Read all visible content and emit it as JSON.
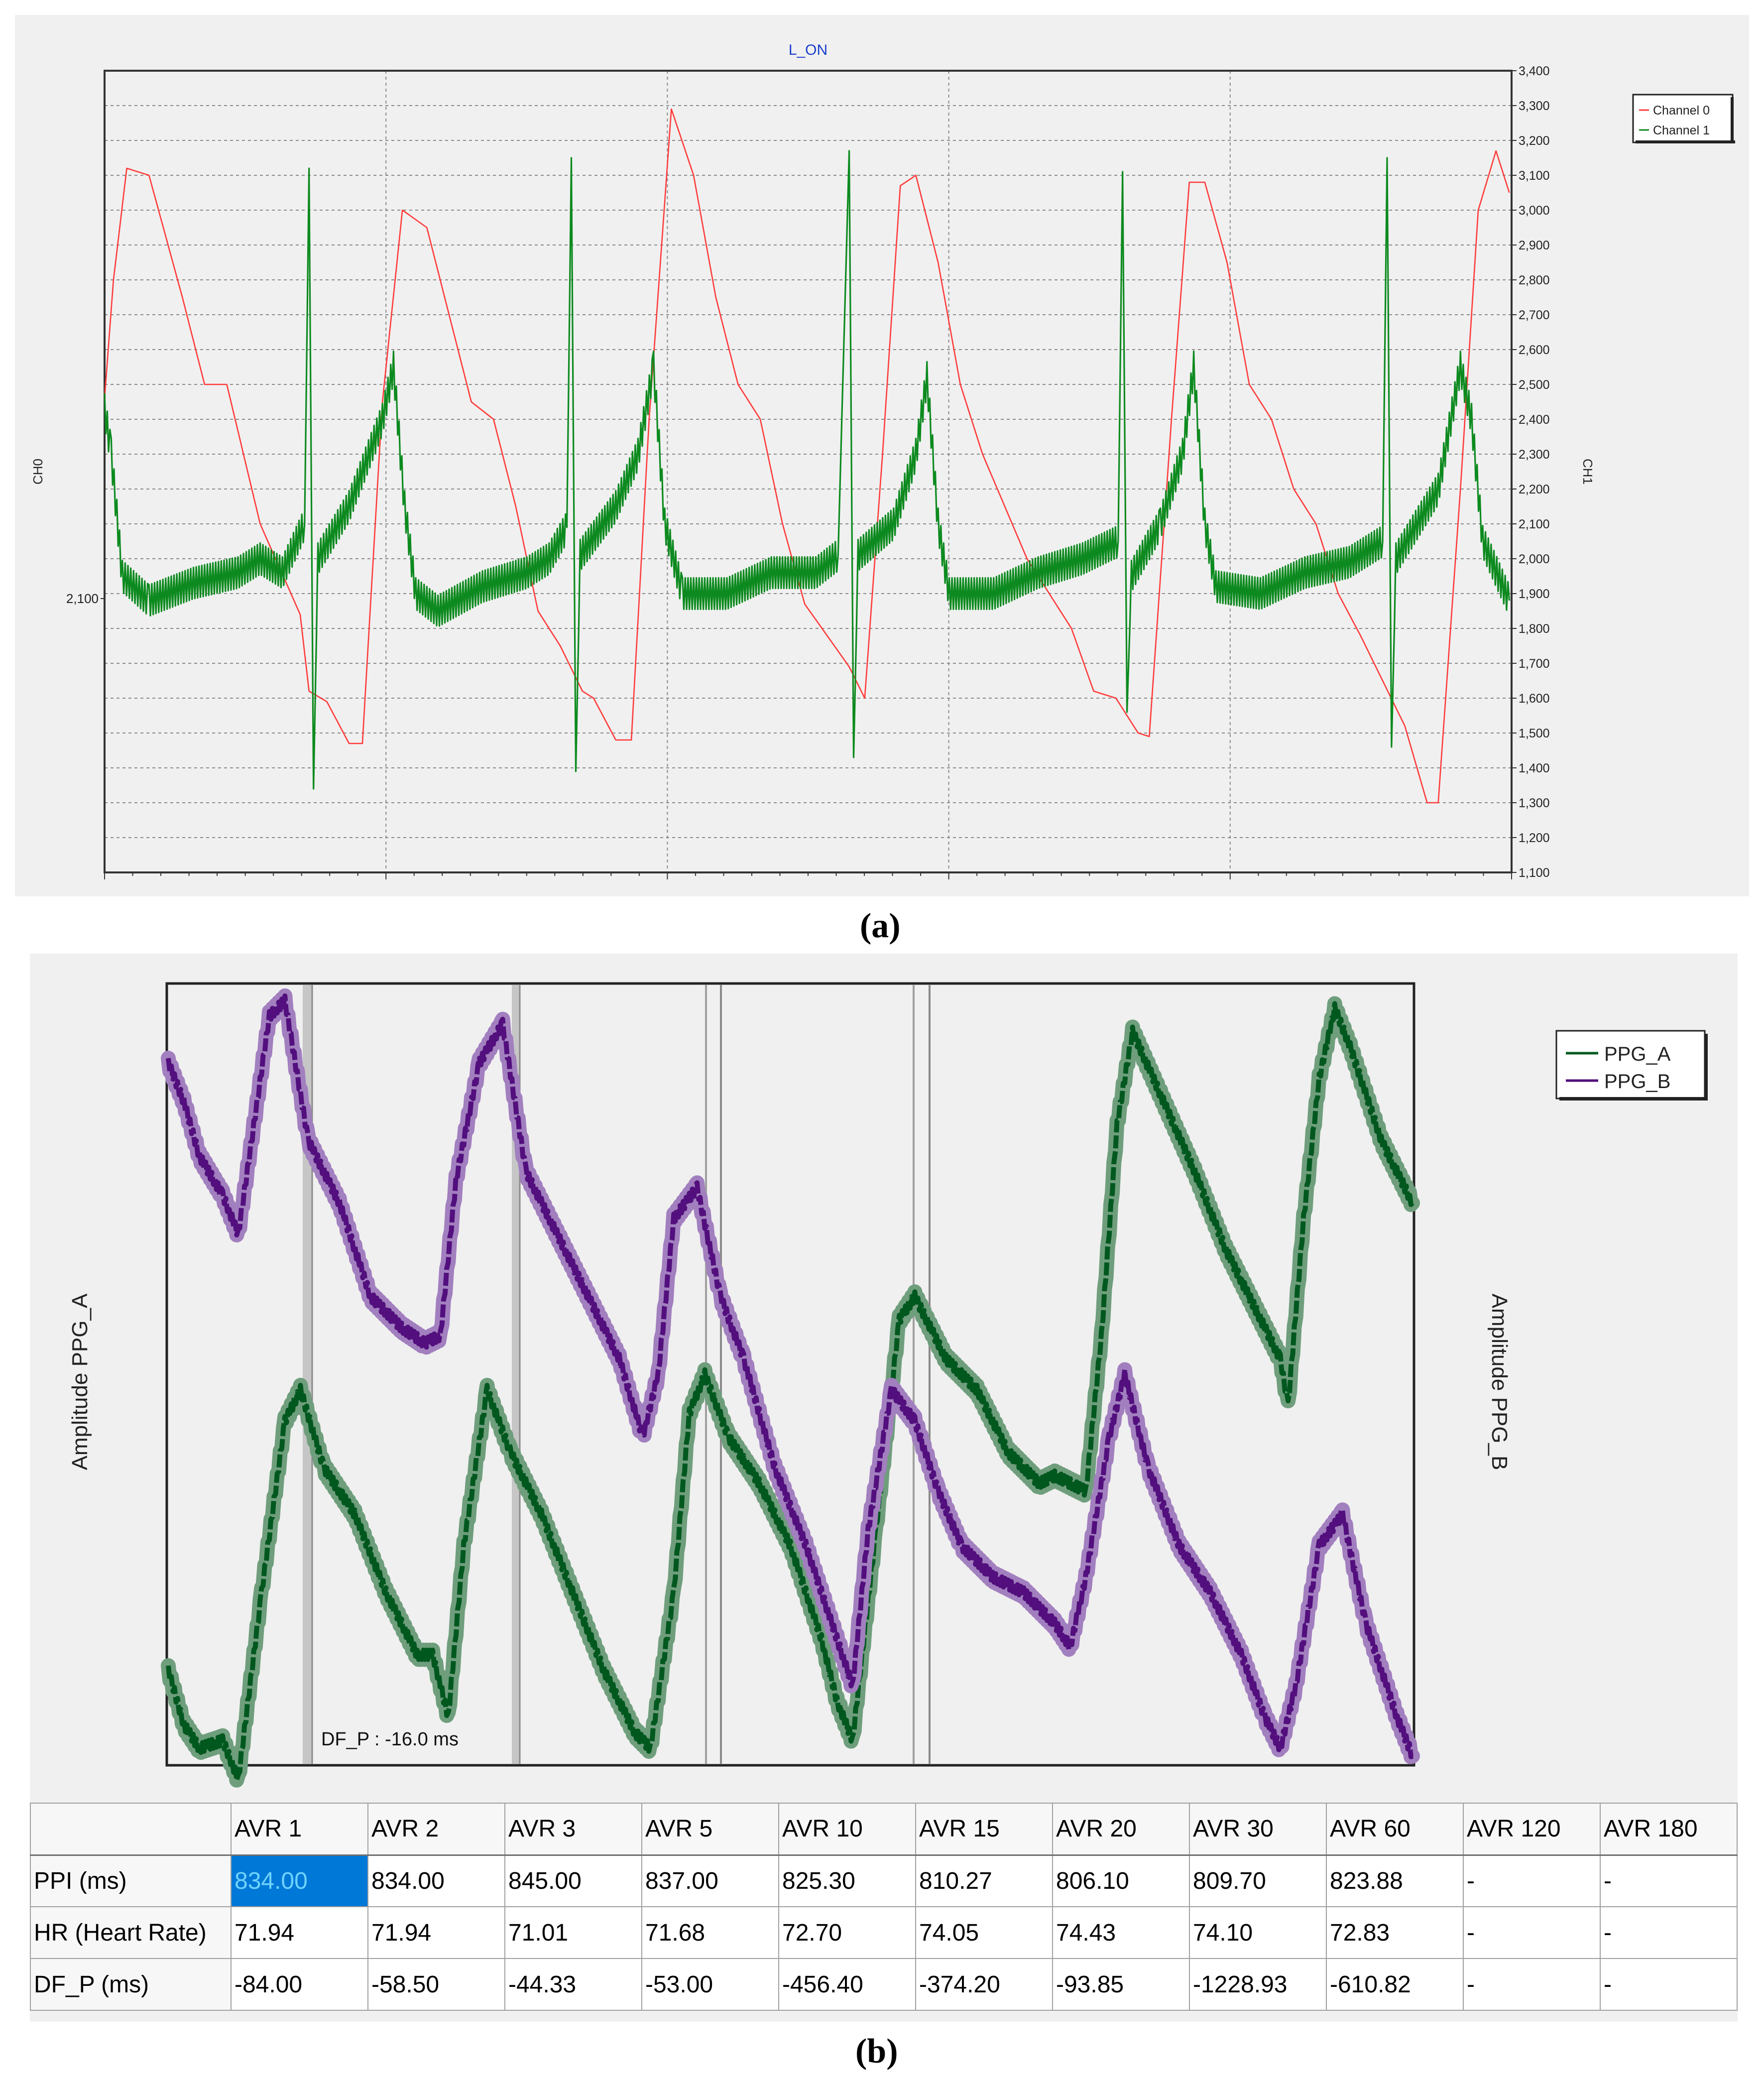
{
  "panel_a": {
    "caption": "(a)",
    "chart_data": {
      "type": "line",
      "title": "L_ON",
      "ylabel_left": "CH0",
      "ylabel_right": "CH1",
      "left_tick_labels": [
        "2,100"
      ],
      "right_ticks": [
        "3,400",
        "3,300",
        "3,200",
        "3,100",
        "3,000",
        "2,900",
        "2,800",
        "2,700",
        "2,600",
        "2,500",
        "2,400",
        "2,300",
        "2,200",
        "2,100",
        "2,000",
        "1,900",
        "1,800",
        "1,700",
        "1,600",
        "1,500",
        "1,400",
        "1,300",
        "1,200",
        "1,100"
      ],
      "ylim": [
        1100,
        3400
      ],
      "grid": true,
      "legend_position": "top-right",
      "series": [
        {
          "name": "Channel 0",
          "color": "#ff3b3b",
          "points": [
            [
              0,
              2460
            ],
            [
              0.4,
              2800
            ],
            [
              1,
              3120
            ],
            [
              2,
              3100
            ],
            [
              3.5,
              2750
            ],
            [
              4.5,
              2500
            ],
            [
              5.5,
              2500
            ],
            [
              7,
              2100
            ],
            [
              8.8,
              1840
            ],
            [
              9.2,
              1620
            ],
            [
              10,
              1590
            ],
            [
              11,
              1470
            ],
            [
              11.6,
              1470
            ],
            [
              12.5,
              2450
            ],
            [
              13.4,
              3000
            ],
            [
              14.5,
              2950
            ],
            [
              15.5,
              2700
            ],
            [
              16.5,
              2450
            ],
            [
              17.5,
              2400
            ],
            [
              18.5,
              2150
            ],
            [
              19.5,
              1850
            ],
            [
              20.5,
              1750
            ],
            [
              21.5,
              1620
            ],
            [
              22,
              1600
            ],
            [
              23,
              1480
            ],
            [
              23.7,
              1480
            ],
            [
              24.5,
              2400
            ],
            [
              25.5,
              3290
            ],
            [
              26.5,
              3100
            ],
            [
              27.5,
              2750
            ],
            [
              28.5,
              2500
            ],
            [
              29.5,
              2400
            ],
            [
              30.5,
              2100
            ],
            [
              31.5,
              1870
            ],
            [
              32.5,
              1780
            ],
            [
              33.5,
              1690
            ],
            [
              34.2,
              1600
            ],
            [
              35,
              2300
            ],
            [
              35.8,
              3070
            ],
            [
              36.5,
              3100
            ],
            [
              37.5,
              2850
            ],
            [
              38.5,
              2500
            ],
            [
              39.5,
              2300
            ],
            [
              40.5,
              2150
            ],
            [
              41.5,
              2000
            ],
            [
              42.5,
              1900
            ],
            [
              43.5,
              1800
            ],
            [
              44.5,
              1620
            ],
            [
              45.5,
              1600
            ],
            [
              46.5,
              1500
            ],
            [
              47,
              1490
            ],
            [
              48,
              2400
            ],
            [
              48.8,
              3080
            ],
            [
              49.5,
              3080
            ],
            [
              50.5,
              2850
            ],
            [
              51.5,
              2500
            ],
            [
              52.5,
              2400
            ],
            [
              53.5,
              2200
            ],
            [
              54.5,
              2100
            ],
            [
              55.5,
              1900
            ],
            [
              56.5,
              1780
            ],
            [
              57.5,
              1650
            ],
            [
              58.5,
              1520
            ],
            [
              59.5,
              1300
            ],
            [
              60,
              1300
            ],
            [
              61,
              2200
            ],
            [
              61.8,
              3000
            ],
            [
              62.6,
              3170
            ],
            [
              63.2,
              3050
            ]
          ]
        },
        {
          "name": "Channel 1",
          "color": "#0d8a1f",
          "points": [
            [
              0,
              2430
            ],
            [
              0.3,
              2300
            ],
            [
              0.8,
              1950
            ],
            [
              2,
              1880
            ],
            [
              4,
              1930
            ],
            [
              6,
              1960
            ],
            [
              7,
              2000
            ],
            [
              8,
              1960
            ],
            [
              8.5,
              2030
            ],
            [
              9,
              2100
            ],
            [
              9.2,
              3120
            ],
            [
              9.4,
              1340
            ],
            [
              9.6,
              2000
            ],
            [
              11,
              2150
            ],
            [
              12.5,
              2400
            ],
            [
              13,
              2550
            ],
            [
              13.5,
              2150
            ],
            [
              14,
              1900
            ],
            [
              15,
              1850
            ],
            [
              17,
              1920
            ],
            [
              19,
              1960
            ],
            [
              20,
              2000
            ],
            [
              20.8,
              2090
            ],
            [
              21,
              3150
            ],
            [
              21.2,
              1390
            ],
            [
              21.4,
              2010
            ],
            [
              23,
              2150
            ],
            [
              24,
              2300
            ],
            [
              24.7,
              2550
            ],
            [
              25.2,
              2100
            ],
            [
              26,
              1900
            ],
            [
              28,
              1900
            ],
            [
              30,
              1960
            ],
            [
              32,
              1960
            ],
            [
              33,
              2010
            ],
            [
              33.5,
              3170
            ],
            [
              33.7,
              1430
            ],
            [
              33.9,
              2010
            ],
            [
              35.5,
              2100
            ],
            [
              36.5,
              2300
            ],
            [
              37,
              2520
            ],
            [
              37.5,
              2100
            ],
            [
              38,
              1900
            ],
            [
              40,
              1900
            ],
            [
              42,
              1960
            ],
            [
              44,
              2000
            ],
            [
              45.6,
              2050
            ],
            [
              45.8,
              3110
            ],
            [
              46,
              1560
            ],
            [
              46.2,
              1950
            ],
            [
              47.5,
              2100
            ],
            [
              48.5,
              2300
            ],
            [
              49,
              2550
            ],
            [
              49.5,
              2100
            ],
            [
              50,
              1920
            ],
            [
              52,
              1900
            ],
            [
              54,
              1960
            ],
            [
              56,
              1990
            ],
            [
              57.5,
              2050
            ],
            [
              57.7,
              3150
            ],
            [
              57.9,
              1460
            ],
            [
              58.1,
              2000
            ],
            [
              60,
              2200
            ],
            [
              61,
              2550
            ],
            [
              61.5,
              2400
            ],
            [
              62,
              2050
            ],
            [
              63.2,
              1880
            ]
          ]
        }
      ]
    }
  },
  "panel_b": {
    "caption": "(b)",
    "chart_data": {
      "type": "line",
      "ylabel_left": "Amplitude PPG_A",
      "ylabel_right": "Amplitude PPG_B",
      "legend_position": "top-right",
      "annotation": "DF_P : -16.0 ms",
      "series": [
        {
          "name": "PPG_A",
          "color": "#00581f",
          "points": [
            [
              0,
              0.12
            ],
            [
              1,
              0.05
            ],
            [
              2,
              0.02
            ],
            [
              3.5,
              0.03
            ],
            [
              4.5,
              -0.02
            ],
            [
              6,
              0.22
            ],
            [
              7.5,
              0.44
            ],
            [
              8.5,
              0.48
            ],
            [
              10,
              0.38
            ],
            [
              12,
              0.32
            ],
            [
              14,
              0.22
            ],
            [
              16,
              0.14
            ],
            [
              17,
              0.14
            ],
            [
              18,
              0.06
            ],
            [
              19,
              0.28
            ],
            [
              20.5,
              0.48
            ],
            [
              22,
              0.4
            ],
            [
              24,
              0.32
            ],
            [
              26,
              0.22
            ],
            [
              28,
              0.12
            ],
            [
              30,
              0.04
            ],
            [
              31,
              0.02
            ],
            [
              32.5,
              0.22
            ],
            [
              33.5,
              0.45
            ],
            [
              34.5,
              0.5
            ],
            [
              36,
              0.42
            ],
            [
              38,
              0.36
            ],
            [
              40,
              0.28
            ],
            [
              42,
              0.16
            ],
            [
              43,
              0.08
            ],
            [
              44,
              0.03
            ],
            [
              45.5,
              0.3
            ],
            [
              47,
              0.57
            ],
            [
              48,
              0.6
            ],
            [
              50,
              0.52
            ],
            [
              52,
              0.48
            ],
            [
              54,
              0.4
            ],
            [
              56,
              0.36
            ],
            [
              57,
              0.37
            ],
            [
              58,
              0.36
            ],
            [
              59,
              0.35
            ],
            [
              60,
              0.55
            ],
            [
              61,
              0.82
            ],
            [
              62,
              0.94
            ],
            [
              64,
              0.85
            ],
            [
              66,
              0.76
            ],
            [
              68,
              0.66
            ],
            [
              70,
              0.58
            ],
            [
              71.5,
              0.52
            ],
            [
              72,
              0.46
            ],
            [
              73,
              0.7
            ],
            [
              74,
              0.88
            ],
            [
              75,
              0.97
            ],
            [
              76,
              0.92
            ],
            [
              78,
              0.8
            ],
            [
              80,
              0.72
            ]
          ]
        },
        {
          "name": "PPG_B",
          "color": "#520f7d",
          "points": [
            [
              0,
              0.9
            ],
            [
              1,
              0.85
            ],
            [
              2,
              0.78
            ],
            [
              3.5,
              0.73
            ],
            [
              4.5,
              0.68
            ],
            [
              5.5,
              0.82
            ],
            [
              6.5,
              0.96
            ],
            [
              7.5,
              0.98
            ],
            [
              9,
              0.8
            ],
            [
              11,
              0.72
            ],
            [
              13,
              0.6
            ],
            [
              15,
              0.56
            ],
            [
              16.5,
              0.54
            ],
            [
              17.5,
              0.55
            ],
            [
              18.5,
              0.75
            ],
            [
              20,
              0.9
            ],
            [
              21.5,
              0.95
            ],
            [
              23,
              0.76
            ],
            [
              25,
              0.68
            ],
            [
              27,
              0.6
            ],
            [
              29,
              0.52
            ],
            [
              30.5,
              0.42
            ],
            [
              31.5,
              0.5
            ],
            [
              32.5,
              0.7
            ],
            [
              34,
              0.74
            ],
            [
              35.5,
              0.6
            ],
            [
              37,
              0.52
            ],
            [
              39,
              0.38
            ],
            [
              41,
              0.28
            ],
            [
              43,
              0.16
            ],
            [
              44,
              0.1
            ],
            [
              45,
              0.3
            ],
            [
              46.5,
              0.48
            ],
            [
              48,
              0.44
            ],
            [
              49.5,
              0.35
            ],
            [
              51,
              0.28
            ],
            [
              53,
              0.24
            ],
            [
              55,
              0.22
            ],
            [
              57,
              0.18
            ],
            [
              58,
              0.15
            ],
            [
              59,
              0.24
            ],
            [
              60.5,
              0.42
            ],
            [
              61.5,
              0.5
            ],
            [
              63,
              0.38
            ],
            [
              65,
              0.28
            ],
            [
              67,
              0.22
            ],
            [
              69,
              0.14
            ],
            [
              70.5,
              0.06
            ],
            [
              71.5,
              0.02
            ],
            [
              72.5,
              0.1
            ],
            [
              74,
              0.28
            ],
            [
              75.5,
              0.32
            ],
            [
              77,
              0.18
            ],
            [
              79,
              0.06
            ],
            [
              80,
              0.01
            ]
          ]
        }
      ]
    },
    "table": {
      "columns": [
        "",
        "AVR 1",
        "AVR 2",
        "AVR 3",
        "AVR 5",
        "AVR 10",
        "AVR 15",
        "AVR 20",
        "AVR 30",
        "AVR 60",
        "AVR 120",
        "AVR 180"
      ],
      "rows": [
        {
          "label": "PPI (ms)",
          "values": [
            "834.00",
            "834.00",
            "845.00",
            "837.00",
            "825.30",
            "810.27",
            "806.10",
            "809.70",
            "823.88",
            "-",
            "-"
          ]
        },
        {
          "label": "HR (Heart Rate)",
          "values": [
            "71.94",
            "71.94",
            "71.01",
            "71.68",
            "72.70",
            "74.05",
            "74.43",
            "74.10",
            "72.83",
            "-",
            "-"
          ]
        },
        {
          "label": "DF_P (ms)",
          "values": [
            "-84.00",
            "-58.50",
            "-44.33",
            "-53.00",
            "-456.40",
            "-374.20",
            "-93.85",
            "-1228.93",
            "-610.82",
            "-",
            "-"
          ]
        }
      ]
    }
  }
}
